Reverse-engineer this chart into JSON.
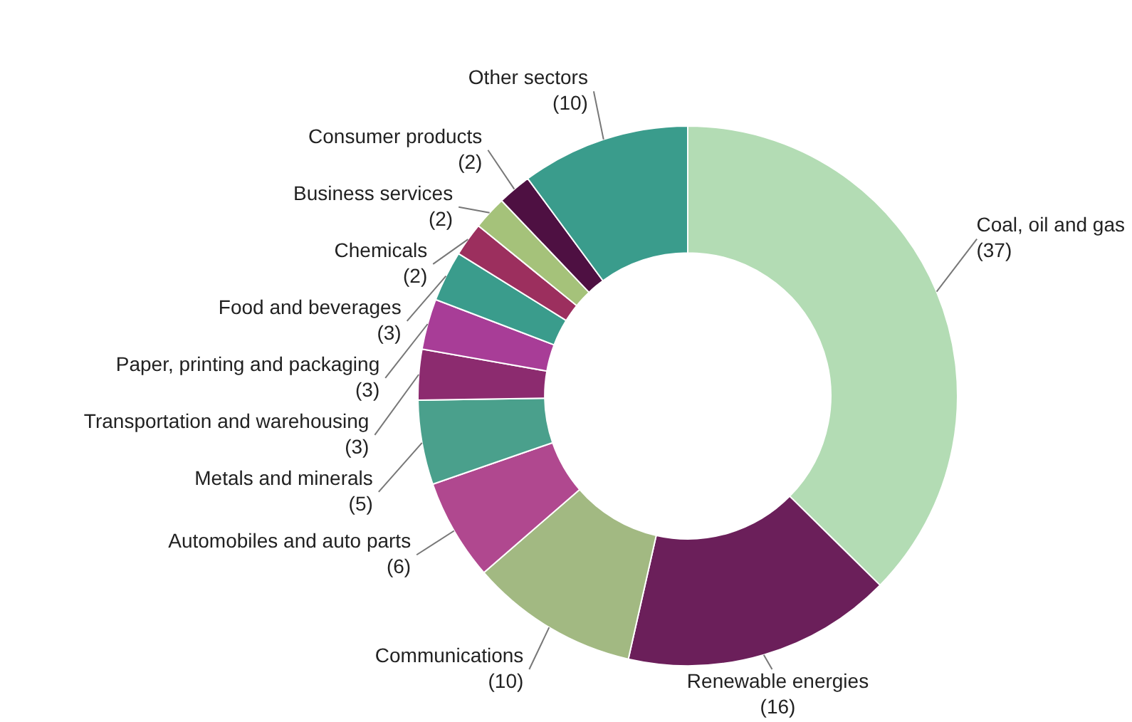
{
  "chart_data": {
    "type": "donut",
    "categories": [
      "Coal, oil and gas",
      "Renewable energies",
      "Communications",
      "Automobiles and auto parts",
      "Metals and minerals",
      "Transportation and warehousing",
      "Paper, printing and packaging",
      "Food and beverages",
      "Chemicals",
      "Business services",
      "Consumer products",
      "Other sectors"
    ],
    "values": [
      37,
      16,
      10,
      6,
      5,
      3,
      3,
      3,
      2,
      2,
      2,
      10
    ],
    "colors": [
      "#b3dcb4",
      "#6b1f5a",
      "#a2b982",
      "#b0488f",
      "#4aa08c",
      "#8c2b6f",
      "#a83d97",
      "#3a9c8c",
      "#9c2f5e",
      "#a5c27a",
      "#4e1042",
      "#3a9c8c"
    ],
    "value_labels": [
      "(37)",
      "(16)",
      "(10)",
      "(6)",
      "(5)",
      "(3)",
      "(3)",
      "(3)",
      "(2)",
      "(2)",
      "(2)",
      "(10)"
    ],
    "legend": false
  }
}
